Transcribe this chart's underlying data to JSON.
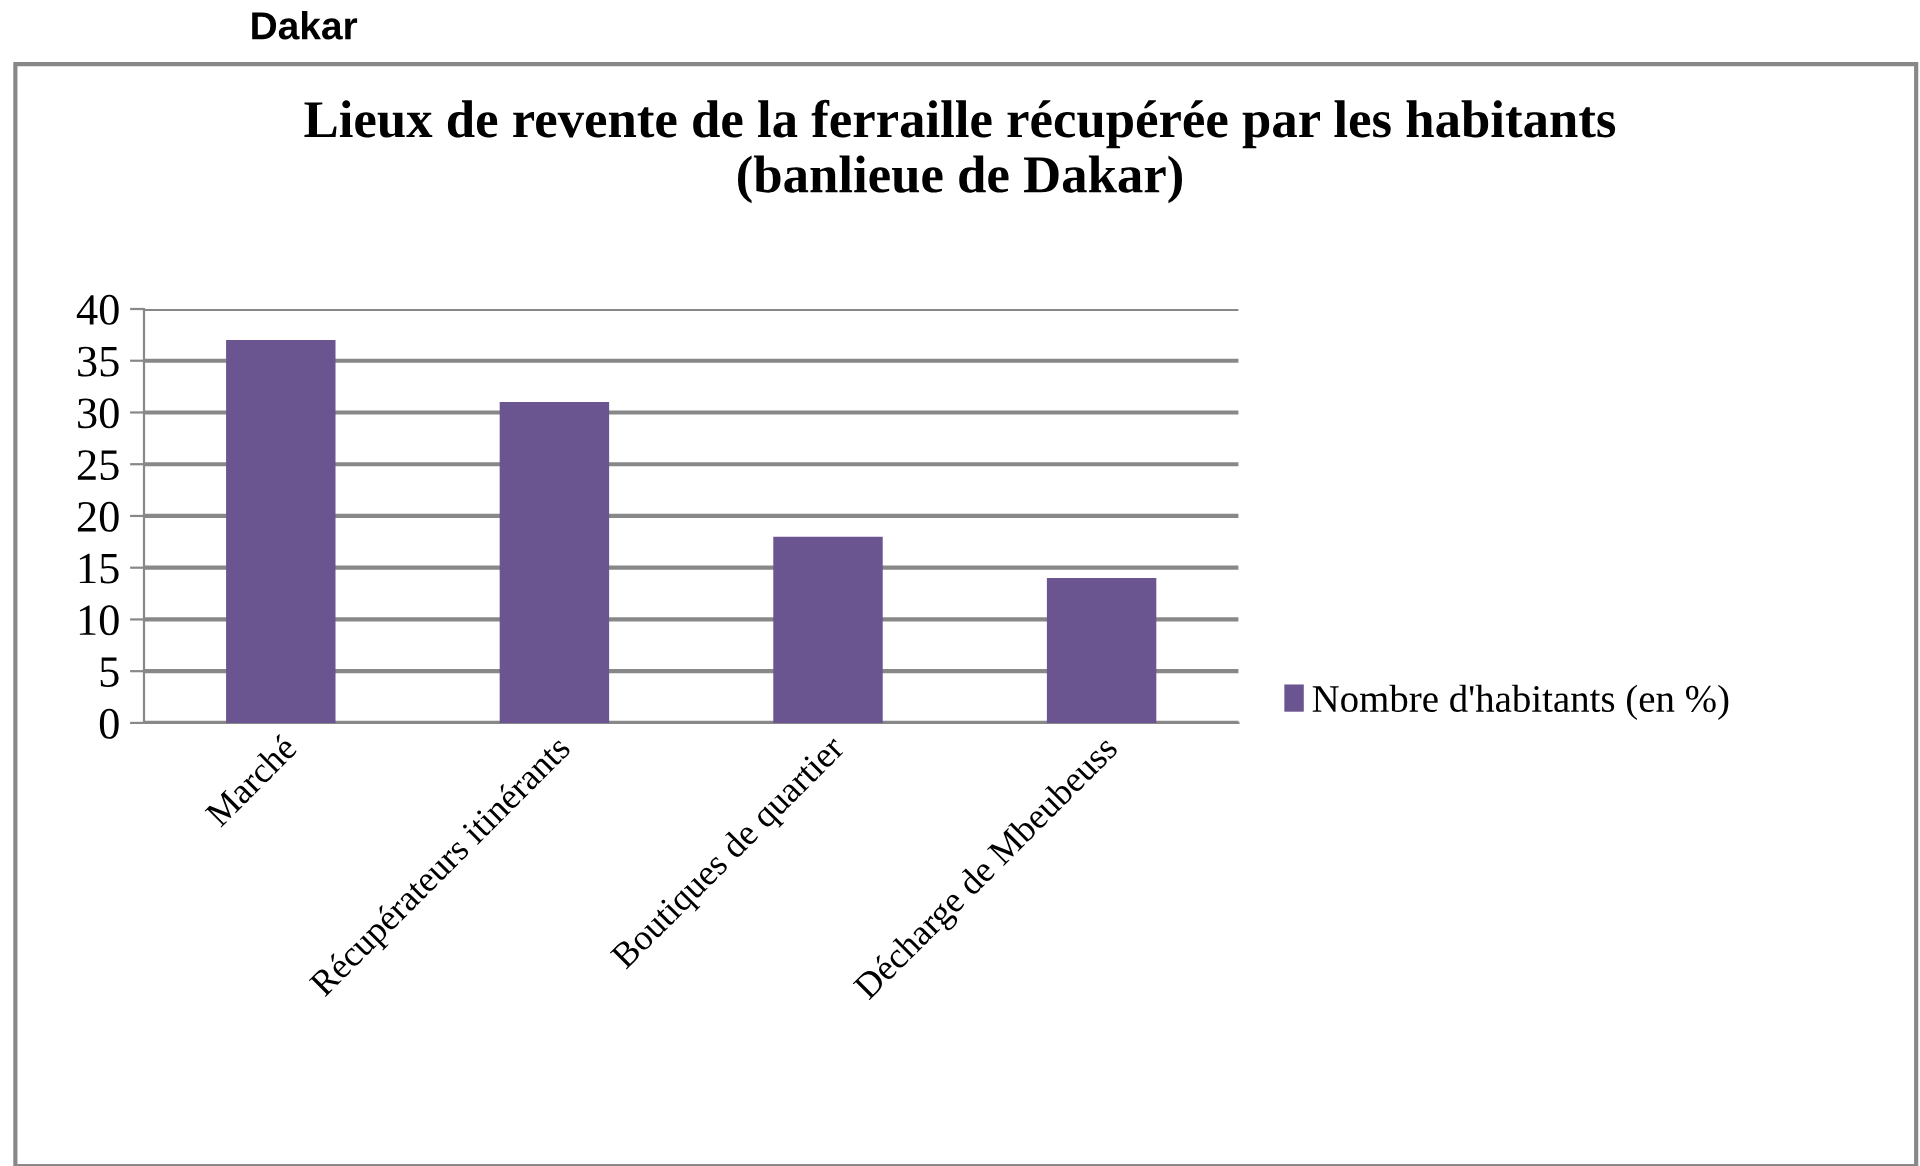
{
  "chart_data": {
    "type": "bar",
    "title": "Lieux de revente de la ferraille récupérée par les habitants\n(banlieue de Dakar)",
    "categories": [
      "Marché",
      "Récupérateurs itinérants",
      "Boutiques de quartier",
      "Décharge de Mbeubeuss"
    ],
    "series": [
      {
        "name": "Nombre d'habitants (en %)",
        "color": "#6b5590",
        "values": [
          37,
          31,
          18,
          14
        ]
      }
    ],
    "ylim": [
      0,
      40
    ],
    "yticks": [
      0,
      5,
      10,
      15,
      20,
      25,
      30,
      35,
      40
    ],
    "grid": "y",
    "legend": "right",
    "annotations": [
      "Dakar"
    ]
  }
}
